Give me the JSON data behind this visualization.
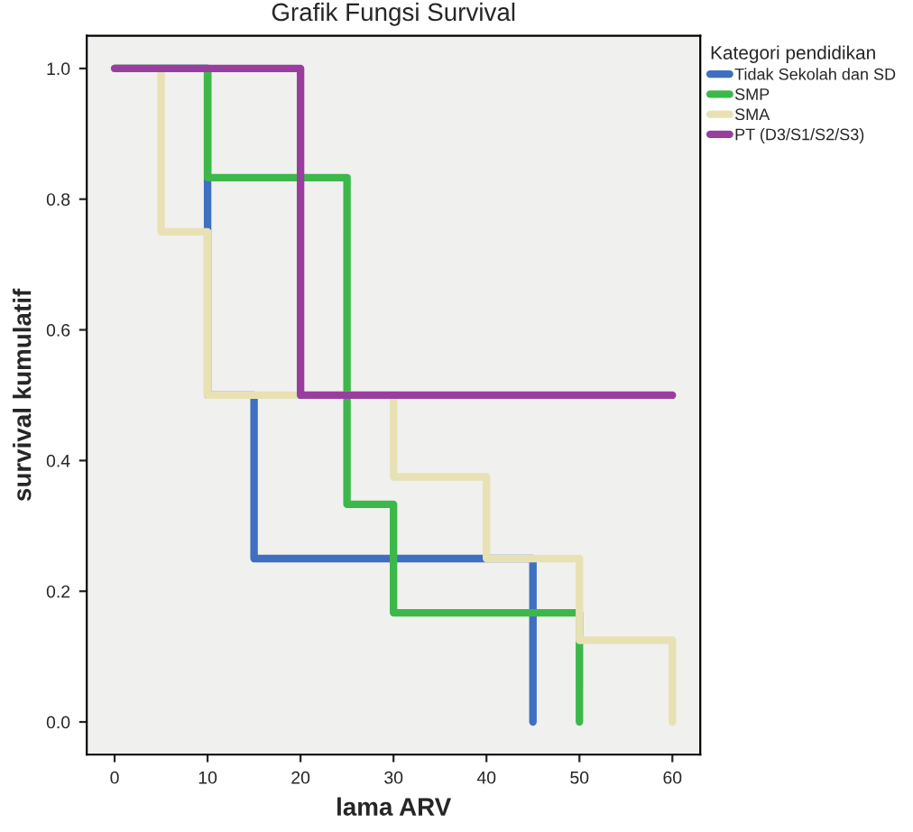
{
  "chart_data": {
    "type": "step",
    "title": "Grafik Fungsi Survival",
    "xlabel": "lama ARV",
    "ylabel": "survival kumulatif",
    "legend_title": "Kategori pendidikan",
    "series": [
      {
        "name": "Tidak Sekolah dan SD",
        "color": "#3e6fc1",
        "x": [
          0,
          10,
          15,
          45
        ],
        "values": [
          1.0,
          0.5,
          0.25,
          0.0
        ]
      },
      {
        "name": "SMP",
        "color": "#3cb84a",
        "x": [
          0,
          10,
          25,
          30,
          50
        ],
        "values": [
          1.0,
          0.833,
          0.333,
          0.167,
          0.0
        ]
      },
      {
        "name": "SMA",
        "color": "#e8e1b4",
        "x": [
          0,
          5,
          10,
          30,
          40,
          50,
          60
        ],
        "values": [
          1.0,
          0.75,
          0.5,
          0.375,
          0.25,
          0.125,
          0.0
        ]
      },
      {
        "name": "PT (D3/S1/S2/S3)",
        "color": "#993e9e",
        "x": [
          0,
          20,
          60
        ],
        "values": [
          1.0,
          0.5,
          0.5
        ]
      }
    ],
    "xlim": [
      -3,
      63
    ],
    "xticks": [
      0,
      10,
      20,
      30,
      40,
      50,
      60
    ],
    "ylim": [
      -0.05,
      1.05
    ],
    "yticks": [
      {
        "value": 0,
        "label": "0.0"
      },
      {
        "value": 0.2,
        "label": "0.2"
      },
      {
        "value": 0.4,
        "label": "0.4"
      },
      {
        "value": 0.6,
        "label": "0.6"
      },
      {
        "value": 0.8,
        "label": "0.8"
      },
      {
        "value": 1,
        "label": "1.0"
      }
    ],
    "legend": "top right",
    "grid": false
  }
}
